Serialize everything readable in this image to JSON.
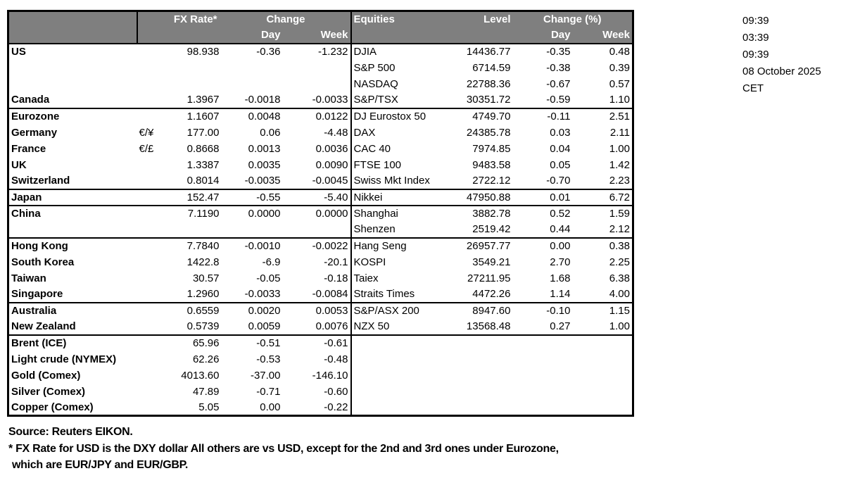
{
  "header": {
    "corner": "",
    "fx_rate": "FX Rate*",
    "change": "Change",
    "day": "Day",
    "week": "Week",
    "equities": "Equities",
    "level": "Level",
    "change_pct": "Change (%)",
    "day2": "Day",
    "week2": "Week"
  },
  "rows": [
    {
      "fx": [
        "US",
        "",
        "98.938",
        "-0.36",
        "-1.232"
      ],
      "eq": [
        "DJIA",
        "14436.77",
        "-0.35",
        "0.48"
      ],
      "sep": false,
      "indent": false
    },
    {
      "fx": [
        "",
        "",
        "",
        "",
        ""
      ],
      "eq": [
        "S&P 500",
        "6714.59",
        "-0.38",
        "0.39"
      ],
      "sep": false,
      "indent": false
    },
    {
      "fx": [
        "",
        "",
        "",
        "",
        ""
      ],
      "eq": [
        "NASDAQ",
        "22788.36",
        "-0.67",
        "0.57"
      ],
      "sep": false,
      "indent": false
    },
    {
      "fx": [
        "Canada",
        "",
        "1.3967",
        "-0.0018",
        "-0.0033"
      ],
      "eq": [
        "S&P/TSX",
        "30351.72",
        "-0.59",
        "1.10"
      ],
      "sep": true,
      "indent": false
    },
    {
      "fx": [
        "Eurozone",
        "",
        "1.1607",
        "0.0048",
        "0.0122"
      ],
      "eq": [
        "DJ Eurostox 50",
        "4749.70",
        "-0.11",
        "2.51"
      ],
      "sep": false,
      "indent": false
    },
    {
      "fx": [
        "Germany",
        "€/¥",
        "177.00",
        "0.06",
        "-4.48"
      ],
      "eq": [
        "DAX",
        "24385.78",
        "0.03",
        "2.11"
      ],
      "sep": false,
      "indent": true
    },
    {
      "fx": [
        "France",
        "€/£",
        "0.8668",
        "0.0013",
        "0.0036"
      ],
      "eq": [
        "CAC 40",
        "7974.85",
        "0.04",
        "1.00"
      ],
      "sep": false,
      "indent": true
    },
    {
      "fx": [
        "UK",
        "",
        "1.3387",
        "0.0035",
        "0.0090"
      ],
      "eq": [
        "FTSE 100",
        "9483.58",
        "0.05",
        "1.42"
      ],
      "sep": false,
      "indent": false
    },
    {
      "fx": [
        "Switzerland",
        "",
        "0.8014",
        "-0.0035",
        "-0.0045"
      ],
      "eq": [
        "Swiss Mkt Index",
        "2722.12",
        "-0.70",
        "2.23"
      ],
      "sep": true,
      "indent": false
    },
    {
      "fx": [
        "Japan",
        "",
        "152.47",
        "-0.55",
        "-5.40"
      ],
      "eq": [
        "Nikkei",
        "47950.88",
        "0.01",
        "6.72"
      ],
      "sep": true,
      "indent": false
    },
    {
      "fx": [
        "China",
        "",
        "7.1190",
        "0.0000",
        "0.0000"
      ],
      "eq": [
        "Shanghai",
        "3882.78",
        "0.52",
        "1.59"
      ],
      "sep": false,
      "indent": false
    },
    {
      "fx": [
        "",
        "",
        "",
        "",
        ""
      ],
      "eq": [
        "Shenzen",
        "2519.42",
        "0.44",
        "2.12"
      ],
      "sep": true,
      "indent": false
    },
    {
      "fx": [
        "Hong Kong",
        "",
        "7.7840",
        "-0.0010",
        "-0.0022"
      ],
      "eq": [
        "Hang Seng",
        "26957.77",
        "0.00",
        "0.38"
      ],
      "sep": false,
      "indent": false
    },
    {
      "fx": [
        "South Korea",
        "",
        "1422.8",
        "-6.9",
        "-20.1"
      ],
      "eq": [
        "KOSPI",
        "3549.21",
        "2.70",
        "2.25"
      ],
      "sep": false,
      "indent": false
    },
    {
      "fx": [
        "Taiwan",
        "",
        "30.57",
        "-0.05",
        "-0.18"
      ],
      "eq": [
        "Taiex",
        "27211.95",
        "1.68",
        "6.38"
      ],
      "sep": false,
      "indent": false
    },
    {
      "fx": [
        "Singapore",
        "",
        "1.2960",
        "-0.0033",
        "-0.0084"
      ],
      "eq": [
        "Straits Times",
        "4472.26",
        "1.14",
        "4.00"
      ],
      "sep": true,
      "indent": false
    },
    {
      "fx": [
        "Australia",
        "",
        "0.6559",
        "0.0020",
        "0.0053"
      ],
      "eq": [
        "S&P/ASX  200",
        "8947.60",
        "-0.10",
        "1.15"
      ],
      "sep": false,
      "indent": false
    },
    {
      "fx": [
        "New Zealand",
        "",
        "0.5739",
        "0.0059",
        "0.0076"
      ],
      "eq": [
        "NZX 50",
        "13568.48",
        "0.27",
        "1.00"
      ],
      "sep": true,
      "indent": false
    },
    {
      "fx": [
        "Brent (ICE)",
        "",
        "65.96",
        "-0.51",
        "-0.61"
      ],
      "eq": [
        "",
        "",
        "",
        ""
      ],
      "sep": false,
      "indent": false
    },
    {
      "fx": [
        "Light crude (NYMEX)",
        "",
        "62.26",
        "-0.53",
        "-0.48"
      ],
      "eq": [
        "",
        "",
        "",
        ""
      ],
      "sep": false,
      "indent": false
    },
    {
      "fx": [
        "Gold (Comex)",
        "",
        "4013.60",
        "-37.00",
        "-146.10"
      ],
      "eq": [
        "",
        "",
        "",
        ""
      ],
      "sep": false,
      "indent": false
    },
    {
      "fx": [
        "Silver (Comex)",
        "",
        "47.89",
        "-0.71",
        "-0.60"
      ],
      "eq": [
        "",
        "",
        "",
        ""
      ],
      "sep": false,
      "indent": false
    },
    {
      "fx": [
        "Copper (Comex)",
        "",
        "5.05",
        "0.00",
        "-0.22"
      ],
      "eq": [
        "",
        "",
        "",
        ""
      ],
      "sep": false,
      "indent": false
    }
  ],
  "timestamps": [
    "09:39",
    "03:39",
    "09:39",
    "08 October 2025",
    "CET"
  ],
  "footer": {
    "source": "Source:  Reuters EIKON.",
    "note_line1": "* FX Rate for USD is the DXY dollar  All others are vs USD, except for the 2nd and 3rd ones under Eurozone,",
    "note_line2": "which are EUR/JPY and EUR/GBP."
  },
  "colors": {
    "header_bg": "#7f7f7f",
    "header_text": "#ffffff",
    "border": "#000000"
  }
}
